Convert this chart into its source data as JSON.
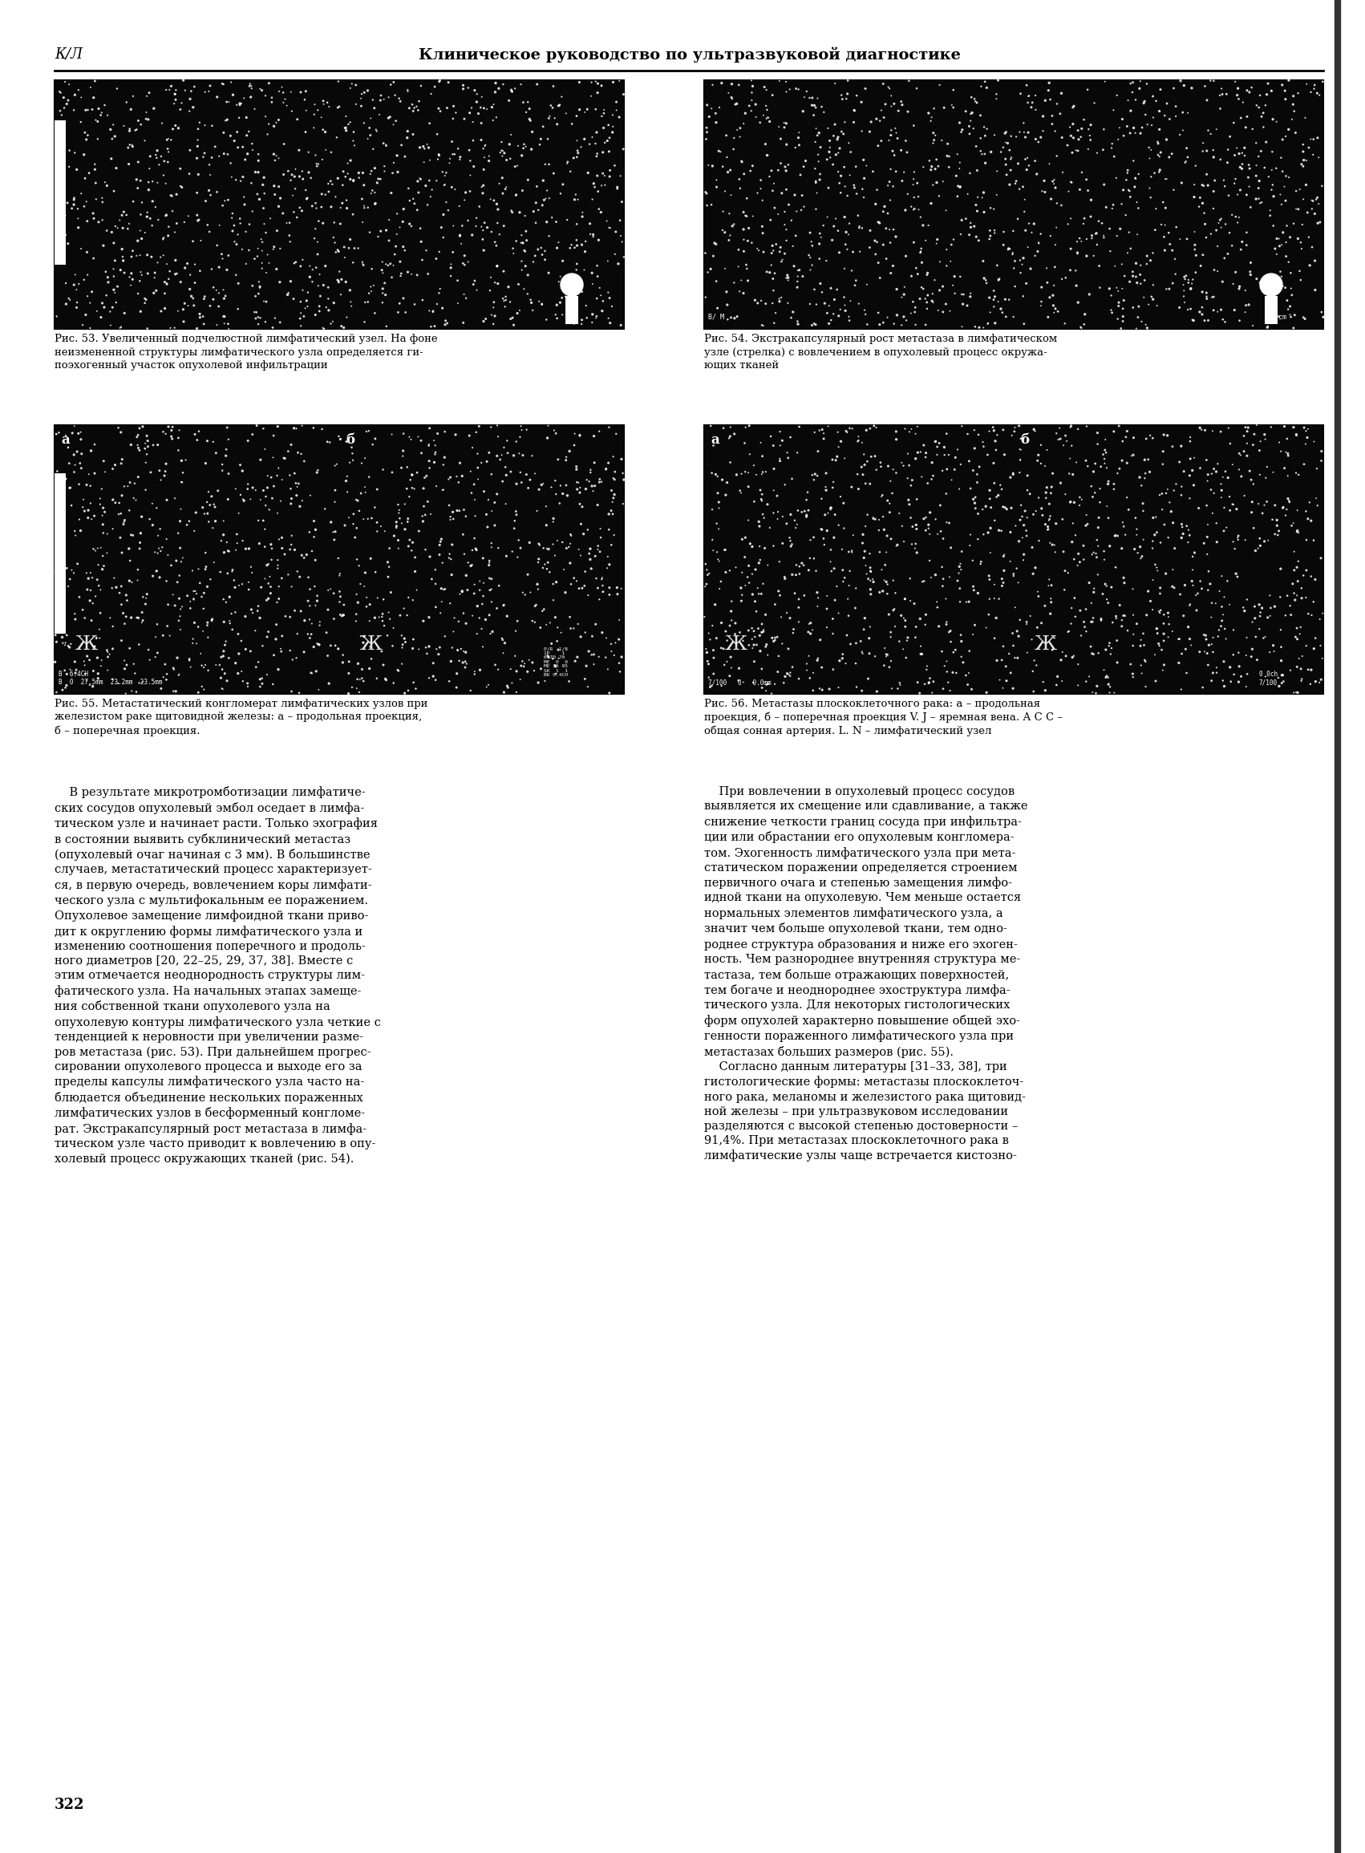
{
  "page_bg": "#ffffff",
  "header_left": "К/Л",
  "header_center": "Клиническое руководство по ультразвуковой диагностике",
  "page_number": "322",
  "cap53": "Рис. 53. Увеличенный подчелюстной лимфатический узел. На фоне\nнеизмененной структуры лимфатического узла определяется ги-\nпоэхогенный участок опухолевой инфильтрации",
  "cap54": "Рис. 54. Экстракапсулярный рост метастаза в лимфатическом\nузле (стрелка) с вовлечением в опухолевый процесс окружа-\nющих тканей",
  "cap55": "Рис. 55. Метастатический конгломерат лимфатических узлов при\nжелезистом раке щитовидной железы: а – продольная проекция,\nб – поперечная проекция.",
  "cap56": "Рис. 56. Метастазы плоскоклеточного рака: а – продольная\nпроекция, б – поперечная проекция V. J – яремная вена. А С С –\nобщая сонная артерия. L. N – лимфатический узел",
  "left_body": "В результате микротромботизации лимфатиче-\nских сосудов опухолевый эмбол оседает в лимфа-\nтическом узле и начинает расти. Только эхография\nв состоянии выявить субклинический метастаз\n(опухолевый очаг начиная с 3 мм). В большинстве\nслучаев, метастатический процесс характеризует-\nся, в первую очередь, вовлечением коры лимфати-\nческого узла с мультифокальным ее поражением.\nОпухолевое замещение лимфоидной ткани приво-\nдит к округлению формы лимфатического узла и\nизменению соотношения поперечного и продоль-\nного диаметров [20, 22–25, 29, 37, 38]. Вместе с\nэтим отмечается неоднородность структуры лим-\nфатического узла. На начальных этапах замеще-\nния собственной ткани опухолевого узла на\nопухолевую контуры лимфатического узла четкие с\nтенденцией к неровности при увеличении разме-\nров метастаза (рис. 53). При дальнейшем прогрес-\nсировании опухолевого процесса и выходе его за\nпределы капсулы лимфатического узла часто на-\nблюдается объединение нескольких пораженных\nлимфатических узлов в бесформенный конгломе-\nрат. Экстракапсулярный рост метастаза в лимфа-\nтическом узле часто приводит к вовлечению в опу-\nхолевый процесс окружающих тканей (рис. 54).",
  "right_body": "При вовлечении в опухолевый процесс сосудов\nвыявляется их смещение или сдавливание, а также\nснижение четкости границ сосуда при инфильтра-\nции или обрастании его опухолевым конгломера-\nтом. Эхогенность лимфатического узла при мета-\nстатическом поражении определяется строением\nпервичного очага и степенью замещения лимфо-\nидной ткани на опухолевую. Чем меньше остается\nнормальных элементов лимфатического узла, а\nзначит чем больше опухолевой ткани, тем одно-\nроднее структура образования и ниже его эхоген-\nность. Чем разнороднее внутренняя структура ме-\nтастаза, тем больше отражающих поверхностей,\nтем богаче и неоднороднее эхоструктура лимфа-\nтического узла. Для некоторых гистологических\nформ опухолей характерно повышение общей эхо-\nгенности пораженного лимфатического узла при\nметастазах больших размеров (рис. 55).\n    Согласно данным литературы [31–33, 38], три\nгистологические формы: метастазы плоскоклеточ-\nного рака, меланомы и железистого рака щитовид-\nной железы – при ультразвуковом исследовании\nразделяются с высокой степенью достоверности –\n91,4%. При метастазах плоскоклеточного рака в\nлимфатические узлы чаще встречается кистозно-"
}
